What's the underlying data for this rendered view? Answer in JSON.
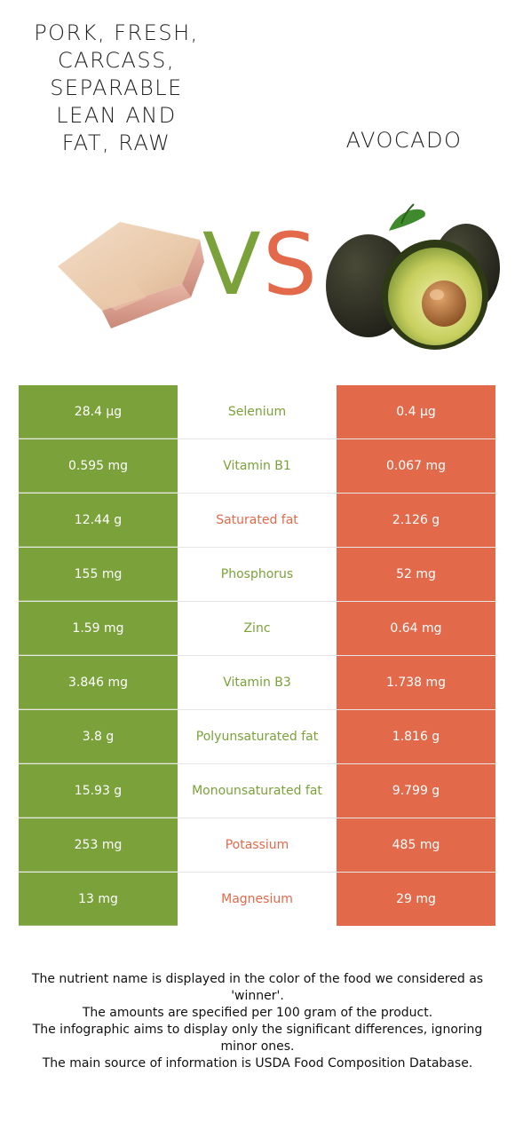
{
  "left_food": {
    "title": "PORK, FRESH,\nCARCASS,\nSEPARABLE\nLEAN AND\nFAT, RAW"
  },
  "right_food": {
    "title": "AVOCADO"
  },
  "vs": {
    "v": "V",
    "s": "S"
  },
  "colors": {
    "left": "#7aa13a",
    "right": "#e26a4b"
  },
  "rows": [
    {
      "left": "28.4 µg",
      "nutrient": "Selenium",
      "right": "0.4 µg",
      "winner": "left"
    },
    {
      "left": "0.595 mg",
      "nutrient": "Vitamin B1",
      "right": "0.067 mg",
      "winner": "left"
    },
    {
      "left": "12.44 g",
      "nutrient": "Saturated fat",
      "right": "2.126 g",
      "winner": "right"
    },
    {
      "left": "155 mg",
      "nutrient": "Phosphorus",
      "right": "52 mg",
      "winner": "left"
    },
    {
      "left": "1.59 mg",
      "nutrient": "Zinc",
      "right": "0.64 mg",
      "winner": "left"
    },
    {
      "left": "3.846 mg",
      "nutrient": "Vitamin B3",
      "right": "1.738 mg",
      "winner": "left"
    },
    {
      "left": "3.8 g",
      "nutrient": "Polyunsaturated fat",
      "right": "1.816 g",
      "winner": "left"
    },
    {
      "left": "15.93 g",
      "nutrient": "Monounsaturated fat",
      "right": "9.799 g",
      "winner": "left"
    },
    {
      "left": "253 mg",
      "nutrient": "Potassium",
      "right": "485 mg",
      "winner": "right"
    },
    {
      "left": "13 mg",
      "nutrient": "Magnesium",
      "right": "29 mg",
      "winner": "right"
    }
  ],
  "footer": [
    "The nutrient name is displayed in the color of the food we considered as 'winner'.",
    "The amounts are specified per 100 gram of the product.",
    "The infographic aims to display only the significant differences, ignoring minor ones.",
    "The main source of information is USDA Food Composition Database."
  ]
}
